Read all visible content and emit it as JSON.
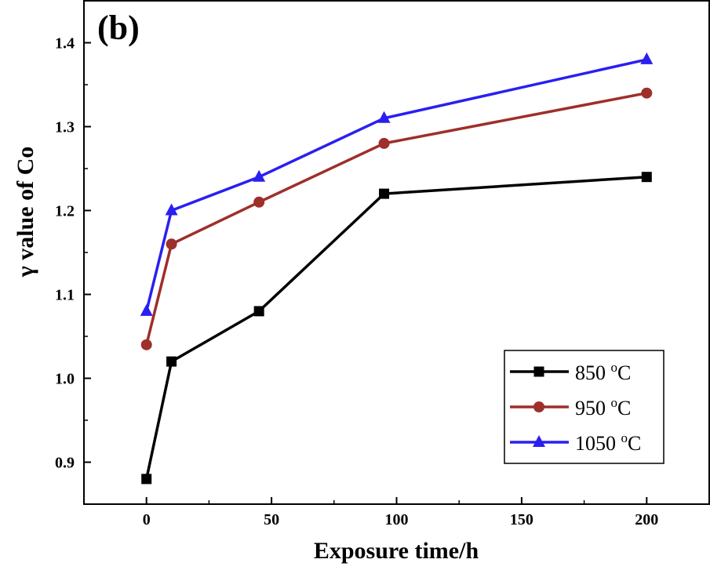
{
  "chart_data": {
    "type": "line",
    "panel_label": "(b)",
    "xlabel": "Exposure time/h",
    "ylabel": "γ value of Co",
    "xlim": [
      -25,
      225
    ],
    "ylim": [
      0.85,
      1.45
    ],
    "x_ticks": [
      0,
      50,
      100,
      150,
      200
    ],
    "y_ticks": [
      0.9,
      1.0,
      1.1,
      1.2,
      1.3,
      1.4
    ],
    "x_tick_labels": [
      "0",
      "50",
      "100",
      "150",
      "200"
    ],
    "y_tick_labels": [
      "0.9",
      "1.0",
      "1.1",
      "1.2",
      "1.3",
      "1.4"
    ],
    "x": [
      0,
      10,
      45,
      95,
      200
    ],
    "series": [
      {
        "name": "850 oC",
        "name_main": "850 ",
        "name_sup": "o",
        "name_tail": "C",
        "color": "#000000",
        "marker": "square",
        "values": [
          0.88,
          1.02,
          1.08,
          1.22,
          1.24
        ]
      },
      {
        "name": "950 oC",
        "name_main": "950 ",
        "name_sup": "o",
        "name_tail": "C",
        "color": "#9e2f2a",
        "marker": "circle",
        "values": [
          1.04,
          1.16,
          1.21,
          1.28,
          1.34
        ]
      },
      {
        "name": "1050 oC",
        "name_main": "1050 ",
        "name_sup": "o",
        "name_tail": "C",
        "color": "#2a1ff0",
        "marker": "triangle",
        "values": [
          1.08,
          1.2,
          1.24,
          1.31,
          1.38
        ]
      }
    ],
    "legend_position": "bottom-right",
    "grid": false
  }
}
